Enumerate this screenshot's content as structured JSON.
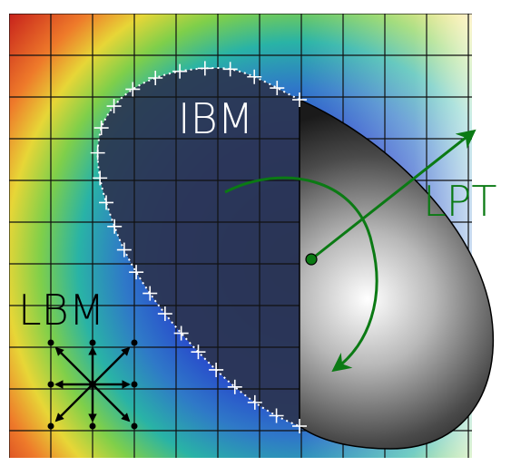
{
  "labels": {
    "ibm": "IBM",
    "lpt": "LPT",
    "lbm": "LBM"
  },
  "colors": {
    "lpt_green": "#0b7a14",
    "grid_line": "#111111",
    "marker": "#ffffff",
    "ibm_text": "#ffffff",
    "lbm_text": "#000000"
  },
  "field": {
    "colormap": "jet",
    "grid_rows": 10,
    "grid_cols": 12
  },
  "icons": {
    "lattice_stencil": "d2q9-arrow-star-icon",
    "rotation": "curved-arrow-icon",
    "translation": "straight-arrow-icon",
    "boundary_markers": "plus-marker-icon"
  }
}
